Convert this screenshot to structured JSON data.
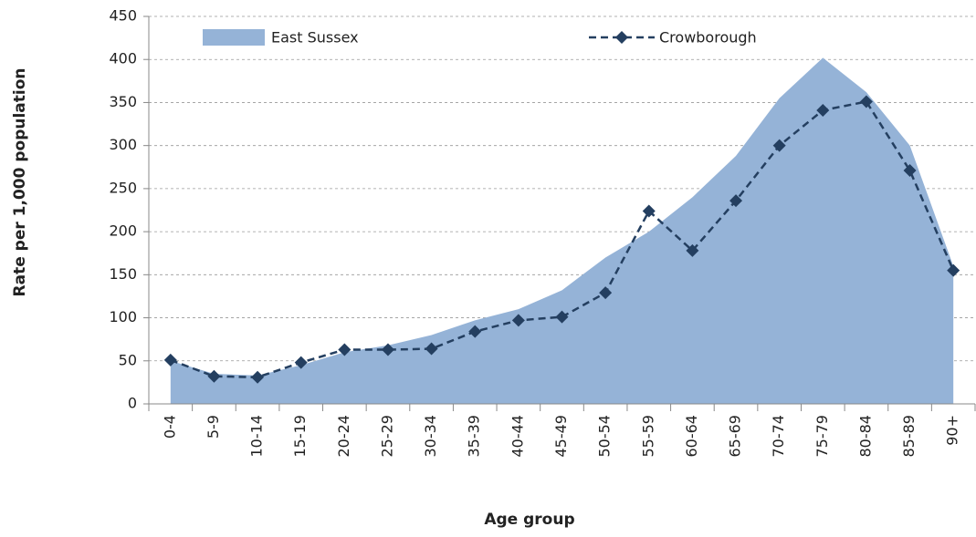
{
  "chart_data": {
    "type": "line",
    "x_label": "Age group",
    "y_label": "Rate per 1,000 population",
    "categories": [
      "0-4",
      "5-9",
      "10-14",
      "15-19",
      "20-24",
      "25-29",
      "30-34",
      "35-39",
      "40-44",
      "45-49",
      "50-54",
      "55-59",
      "60-64",
      "65-69",
      "70-74",
      "75-79",
      "80-84",
      "85-89",
      "90+"
    ],
    "series": [
      {
        "name": "East Sussex",
        "type": "area",
        "color": "#95b3d7",
        "values": [
          50,
          35,
          33,
          45,
          60,
          68,
          80,
          97,
          110,
          132,
          170,
          200,
          240,
          288,
          355,
          402,
          362,
          300,
          160
        ]
      },
      {
        "name": "Crowborough",
        "type": "line",
        "color": "#243f60",
        "values": [
          51,
          32,
          31,
          48,
          63,
          63,
          64,
          84,
          97,
          101,
          129,
          224,
          178,
          236,
          300,
          341,
          351,
          271,
          155
        ]
      }
    ],
    "ylim": [
      0,
      450
    ],
    "yticks": [
      0,
      50,
      100,
      150,
      200,
      250,
      300,
      350,
      400,
      450
    ],
    "grid": true
  }
}
